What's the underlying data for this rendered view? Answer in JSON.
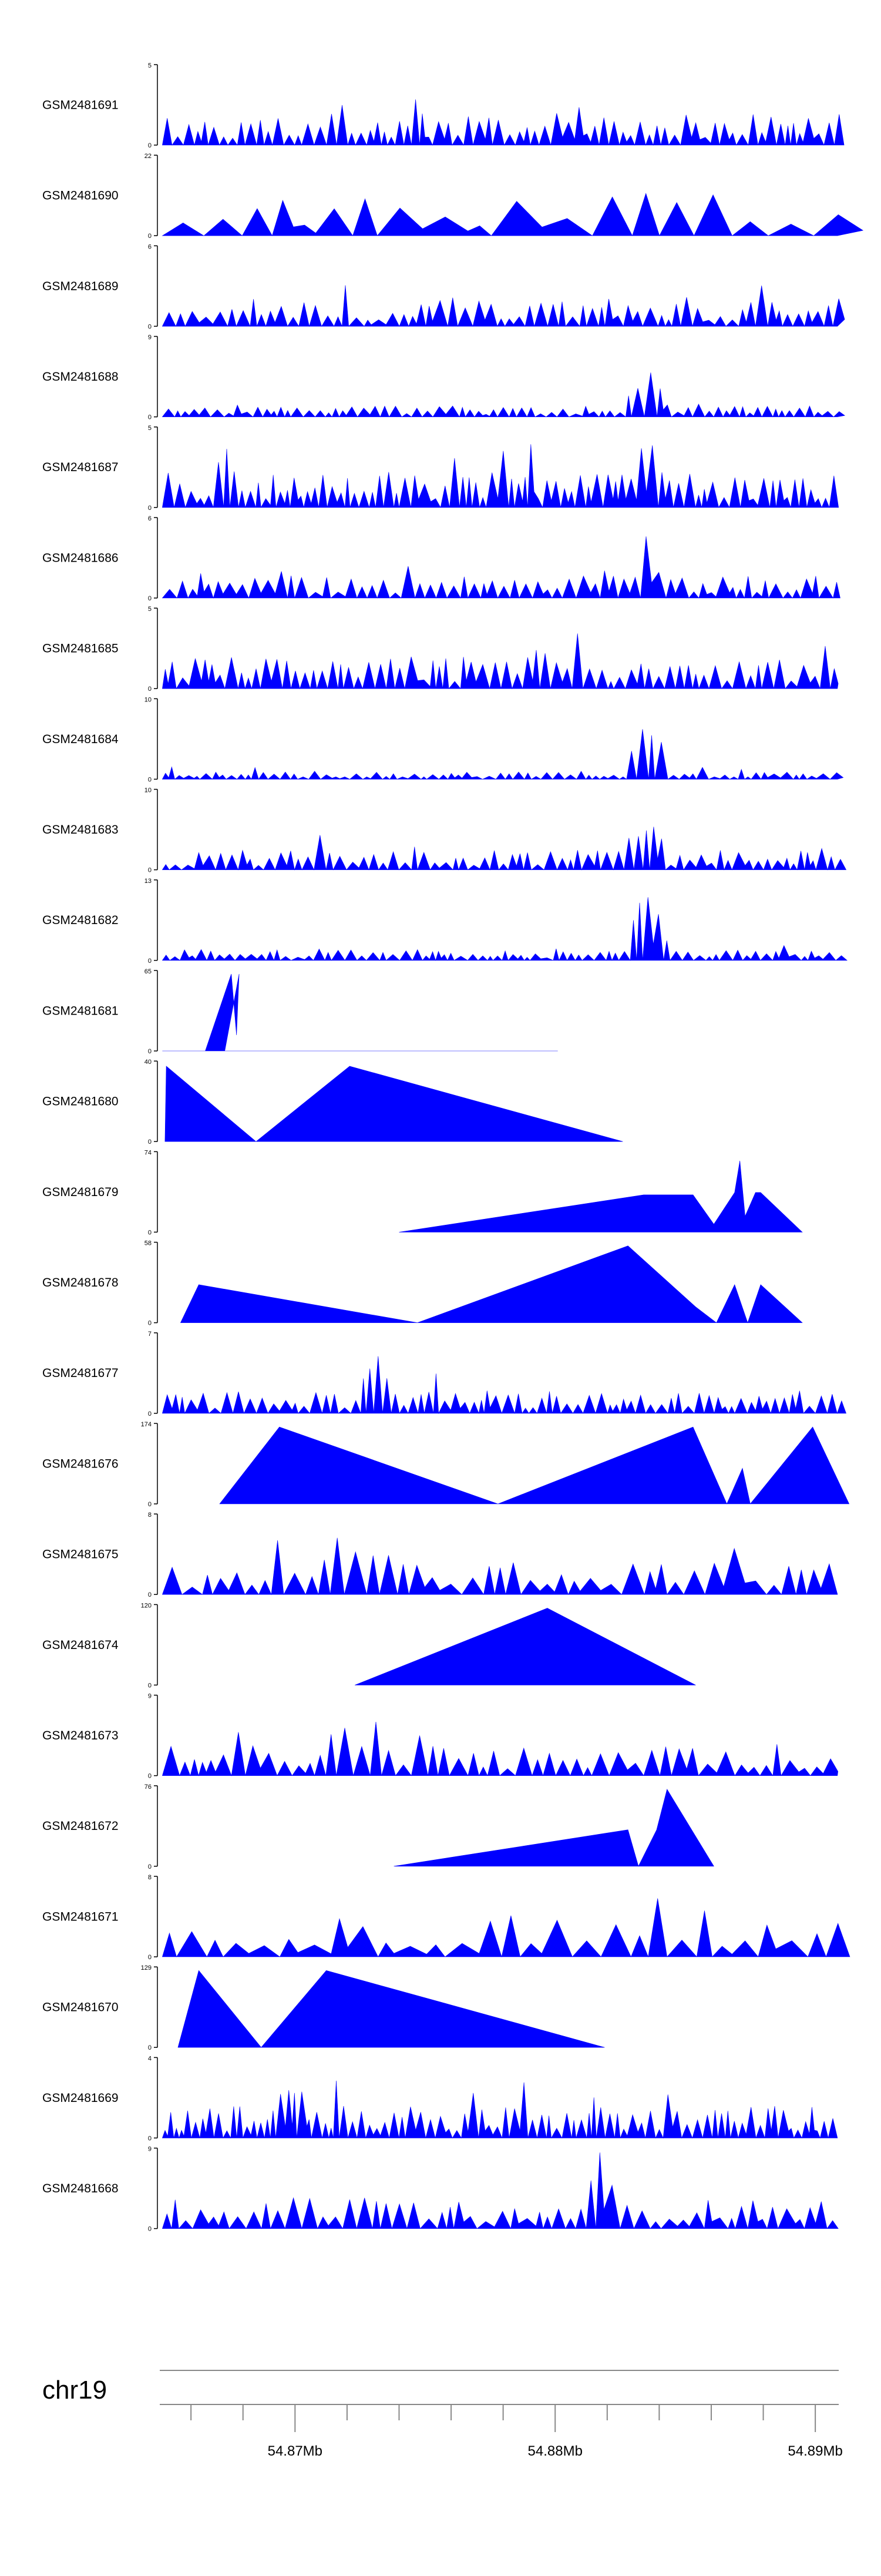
{
  "chart_data": {
    "type": "area",
    "fill_color": "#0000FF",
    "genome": {
      "chromosome": "chr19",
      "xlim": [
        54.8648,
        54.8909
      ],
      "unit": "Mb",
      "major_ticks": [
        54.87,
        54.88,
        54.89
      ],
      "tick_labels": [
        "54.87Mb",
        "54.88Mb",
        "54.89Mb"
      ]
    },
    "tracks": [
      {
        "name": "GSM2481691",
        "ymax": 5
      },
      {
        "name": "GSM2481690",
        "ymax": 22
      },
      {
        "name": "GSM2481689",
        "ymax": 6
      },
      {
        "name": "GSM2481688",
        "ymax": 9
      },
      {
        "name": "GSM2481687",
        "ymax": 5
      },
      {
        "name": "GSM2481686",
        "ymax": 6
      },
      {
        "name": "GSM2481685",
        "ymax": 5
      },
      {
        "name": "GSM2481684",
        "ymax": 10
      },
      {
        "name": "GSM2481683",
        "ymax": 10
      },
      {
        "name": "GSM2481682",
        "ymax": 13
      },
      {
        "name": "GSM2481681",
        "ymax": 65,
        "profile": [
          [
            54.8649,
            0.0
          ],
          [
            54.86655,
            0.0
          ],
          [
            54.86755,
            0.97
          ],
          [
            54.86775,
            0.2
          ],
          [
            54.86785,
            0.97
          ],
          [
            54.8673,
            0.0
          ],
          [
            54.8801,
            0.0
          ]
        ]
      },
      {
        "name": "GSM2481680",
        "ymax": 40,
        "profile": [
          [
            54.865,
            0.0
          ],
          [
            54.86505,
            0.95
          ],
          [
            54.8685,
            0.0
          ],
          [
            54.8721,
            0.95
          ],
          [
            54.8826,
            0.0
          ]
        ]
      },
      {
        "name": "GSM2481679",
        "ymax": 74,
        "profile": [
          [
            54.874,
            0.0
          ],
          [
            54.8834,
            0.47
          ],
          [
            54.8853,
            0.47
          ],
          [
            54.8861,
            0.1
          ],
          [
            54.8869,
            0.5
          ],
          [
            54.8871,
            0.9
          ],
          [
            54.8873,
            0.2
          ],
          [
            54.8877,
            0.5
          ],
          [
            54.8879,
            0.5
          ],
          [
            54.8895,
            0.0
          ]
        ]
      },
      {
        "name": "GSM2481678",
        "ymax": 58,
        "profile": [
          [
            54.8656,
            0.0
          ],
          [
            54.8663,
            0.48
          ],
          [
            54.8747,
            0.0
          ],
          [
            54.8828,
            0.97
          ],
          [
            54.8854,
            0.2
          ],
          [
            54.8862,
            0.0
          ],
          [
            54.8869,
            0.48
          ],
          [
            54.8874,
            0.0
          ],
          [
            54.8879,
            0.48
          ],
          [
            54.8895,
            0.0
          ]
        ]
      },
      {
        "name": "GSM2481677",
        "ymax": 7
      },
      {
        "name": "GSM2481676",
        "ymax": 174,
        "profile": [
          [
            54.8671,
            0.0
          ],
          [
            54.8694,
            0.97
          ],
          [
            54.8778,
            0.0
          ],
          [
            54.8853,
            0.97
          ],
          [
            54.8866,
            0.0
          ],
          [
            54.8872,
            0.45
          ],
          [
            54.8875,
            0.0
          ],
          [
            54.8899,
            0.97
          ],
          [
            54.8913,
            0.0
          ]
        ]
      },
      {
        "name": "GSM2481675",
        "ymax": 8
      },
      {
        "name": "GSM2481674",
        "ymax": 120,
        "profile": [
          [
            54.8723,
            0.0
          ],
          [
            54.8797,
            0.97
          ],
          [
            54.8854,
            0.0
          ]
        ]
      },
      {
        "name": "GSM2481673",
        "ymax": 9
      },
      {
        "name": "GSM2481672",
        "ymax": 76,
        "profile": [
          [
            54.8738,
            0.0
          ],
          [
            54.8828,
            0.46
          ],
          [
            54.8832,
            0.0
          ],
          [
            54.8839,
            0.46
          ],
          [
            54.8843,
            0.97
          ],
          [
            54.8861,
            0.0
          ]
        ]
      },
      {
        "name": "GSM2481671",
        "ymax": 8
      },
      {
        "name": "GSM2481670",
        "ymax": 129,
        "profile": [
          [
            54.8655,
            0.0
          ],
          [
            54.8663,
            0.97
          ],
          [
            54.8687,
            0.0
          ],
          [
            54.8712,
            0.97
          ],
          [
            54.8819,
            0.0
          ]
        ]
      },
      {
        "name": "GSM2481669",
        "ymax": 4
      },
      {
        "name": "GSM2481668",
        "ymax": 9
      }
    ]
  }
}
